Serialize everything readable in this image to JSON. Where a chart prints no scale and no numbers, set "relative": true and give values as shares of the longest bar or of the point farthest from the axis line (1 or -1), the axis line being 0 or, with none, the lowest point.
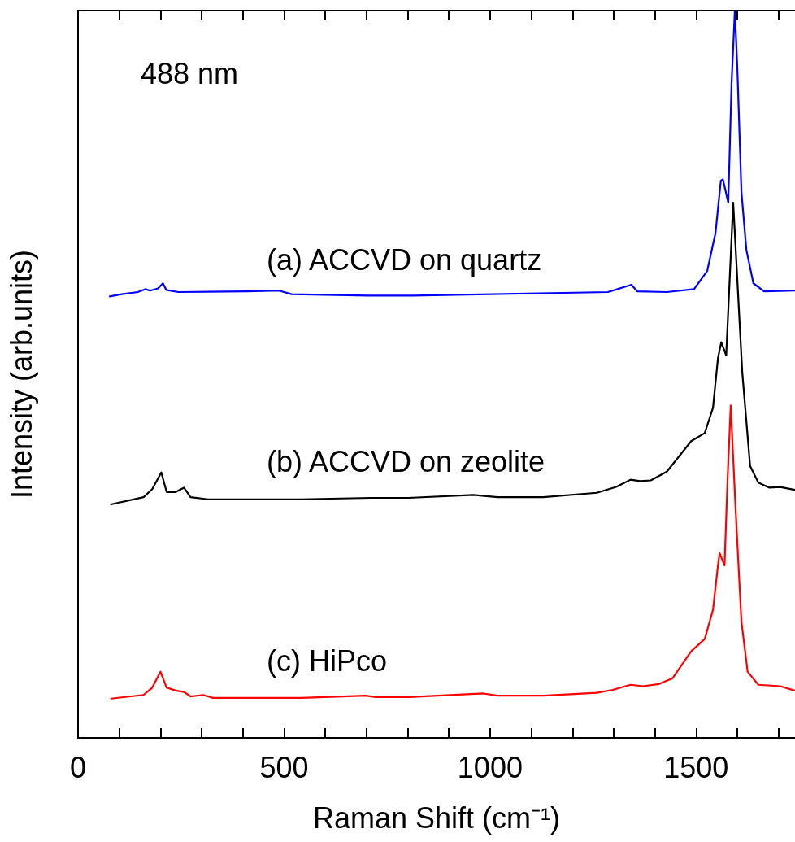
{
  "chart_data": {
    "type": "line",
    "relative": true,
    "xlabel": "Raman Shift (cm⁻¹)",
    "ylabel": "Intensity (arb.units)",
    "annotations": [
      "488 nm"
    ],
    "xlim": [
      0,
      1740
    ],
    "xticks": [
      0,
      {
        "value": 100,
        "label": null
      },
      {
        "value": 200,
        "label": null
      },
      {
        "value": 300,
        "label": null
      },
      {
        "value": 400,
        "label": null
      },
      500,
      {
        "value": 600,
        "label": null
      },
      {
        "value": 700,
        "label": null
      },
      {
        "value": 800,
        "label": null
      },
      {
        "value": 900,
        "label": null
      },
      1000,
      {
        "value": 1100,
        "label": null
      },
      {
        "value": 1200,
        "label": null
      },
      {
        "value": 1300,
        "label": null
      },
      {
        "value": 1400,
        "label": null
      },
      1500,
      {
        "value": 1600,
        "label": null
      },
      {
        "value": 1700,
        "label": null
      }
    ],
    "grid": false,
    "legend": false,
    "marker": "none",
    "line_style": "solid",
    "series": [
      {
        "name": "(a) ACCVD on quartz",
        "color": "#0000ff",
        "x": [
          77,
          106,
          145,
          163,
          175,
          194,
          206,
          214,
          243,
          410,
          488,
          518,
          704,
          802,
          1286,
          1343,
          1357,
          1429,
          1495,
          1527,
          1547,
          1560,
          1565,
          1578,
          1586,
          1594,
          1600,
          1610,
          1622,
          1639,
          1665,
          1739
        ],
        "values": [
          0.607,
          0.61,
          0.613,
          0.617,
          0.615,
          0.618,
          0.625,
          0.616,
          0.613,
          0.614,
          0.615,
          0.61,
          0.608,
          0.608,
          0.613,
          0.623,
          0.614,
          0.613,
          0.617,
          0.642,
          0.694,
          0.766,
          0.768,
          0.736,
          0.899,
          1,
          0.922,
          0.751,
          0.671,
          0.625,
          0.614,
          0.615
        ]
      },
      {
        "name": "(b) ACCVD on zeolite",
        "color": "#000000",
        "x": [
          80,
          159,
          180,
          202,
          215,
          237,
          257,
          273,
          316,
          541,
          710,
          802,
          959,
          1018,
          1129,
          1259,
          1306,
          1341,
          1364,
          1390,
          1429,
          1488,
          1521,
          1541,
          1553,
          1561,
          1573,
          1590,
          1612,
          1631,
          1651,
          1678,
          1704,
          1739
        ],
        "values": [
          0.321,
          0.331,
          0.342,
          0.365,
          0.338,
          0.338,
          0.344,
          0.331,
          0.328,
          0.328,
          0.33,
          0.33,
          0.334,
          0.331,
          0.331,
          0.337,
          0.345,
          0.355,
          0.353,
          0.354,
          0.366,
          0.408,
          0.419,
          0.454,
          0.522,
          0.544,
          0.526,
          0.736,
          0.503,
          0.374,
          0.351,
          0.344,
          0.345,
          0.341
        ]
      },
      {
        "name": "(c) HiPco",
        "color": "#ff0000",
        "x": [
          80,
          159,
          180,
          200,
          215,
          237,
          257,
          273,
          304,
          327,
          541,
          698,
          722,
          802,
          984,
          1018,
          1129,
          1259,
          1298,
          1341,
          1371,
          1410,
          1443,
          1488,
          1521,
          1541,
          1553,
          1557,
          1569,
          1576,
          1584,
          1596,
          1610,
          1625,
          1651,
          1704,
          1739
        ],
        "values": [
          0.054,
          0.059,
          0.069,
          0.091,
          0.069,
          0.065,
          0.063,
          0.057,
          0.059,
          0.055,
          0.055,
          0.058,
          0.056,
          0.056,
          0.061,
          0.058,
          0.058,
          0.062,
          0.066,
          0.073,
          0.071,
          0.074,
          0.082,
          0.119,
          0.136,
          0.176,
          0.237,
          0.254,
          0.237,
          0.351,
          0.457,
          0.313,
          0.16,
          0.091,
          0.073,
          0.071,
          0.065
        ]
      }
    ]
  }
}
